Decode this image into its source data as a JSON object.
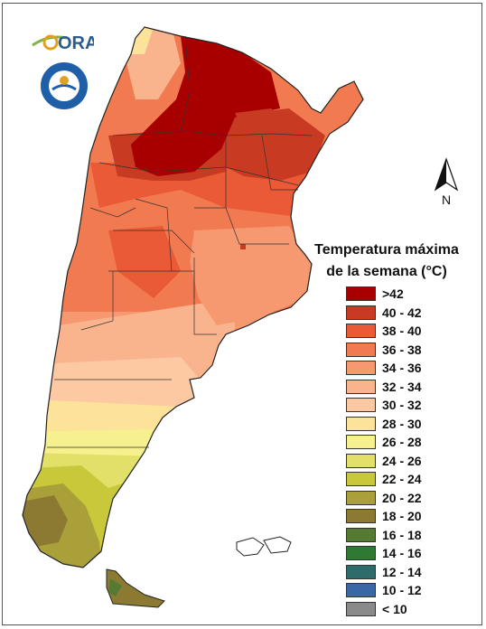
{
  "logos": {
    "ora": "ORA",
    "smn_seal_text": "SERVICIO METEOROLOGICO NACIONAL ARGENTINA"
  },
  "north_arrow": {
    "label": "N"
  },
  "legend": {
    "title_line1": "Temperatura máxima",
    "title_line2": "de la semana (°C)",
    "items": [
      {
        "label": ">42",
        "color": "#a80000"
      },
      {
        "label": "40 - 42",
        "color": "#c83a22"
      },
      {
        "label": "38 - 40",
        "color": "#ea5a36"
      },
      {
        "label": "36 - 38",
        "color": "#f27a50"
      },
      {
        "label": "34 - 36",
        "color": "#f69870"
      },
      {
        "label": "32 - 34",
        "color": "#f9b48e"
      },
      {
        "label": "30 - 32",
        "color": "#fcc9a2"
      },
      {
        "label": "28 - 30",
        "color": "#fde29a"
      },
      {
        "label": "26 - 28",
        "color": "#f7f08e"
      },
      {
        "label": "24 - 26",
        "color": "#e3e06a"
      },
      {
        "label": "22 - 24",
        "color": "#c9c83a"
      },
      {
        "label": "20 - 22",
        "color": "#aaa03a"
      },
      {
        "label": "18 - 20",
        "color": "#8c7a32"
      },
      {
        "label": "16 - 18",
        "color": "#557a32"
      },
      {
        "label": "14 - 16",
        "color": "#2e7a32"
      },
      {
        "label": "12 - 14",
        "color": "#2e6b6b"
      },
      {
        "label": "10 - 12",
        "color": "#3a68a6"
      },
      {
        "label": "< 10",
        "color": "#8a8a8a"
      }
    ]
  }
}
